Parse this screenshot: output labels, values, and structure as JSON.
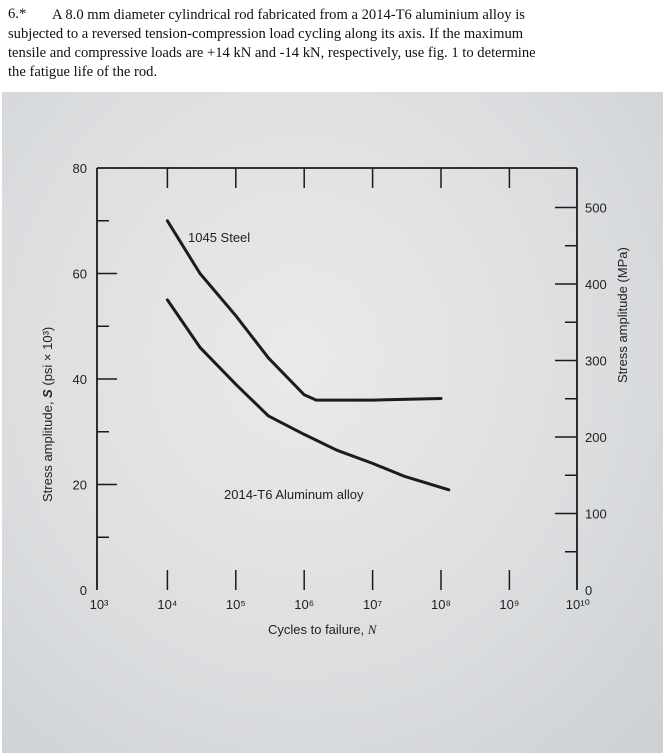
{
  "problem": {
    "number": "6.*",
    "lines": [
      "A 8.0 mm diameter cylindrical rod fabricated from a 2014-T6 aluminium alloy is",
      "subjected to a reversed tension-compression load cycling along its axis. If the maximum",
      "tensile and compressive loads are +14 kN and -14 kN, respectively, use fig. 1 to determine",
      "the fatigue life of the rod."
    ]
  },
  "chart_data": {
    "type": "line",
    "xscale": "log",
    "xlim_exponents": [
      3,
      10
    ],
    "x_ticks": [
      "10³",
      "10⁴",
      "10⁵",
      "10⁶",
      "10⁷",
      "10⁸",
      "10⁹",
      "10¹⁰"
    ],
    "xlabel_text": "Cycles to failure,",
    "xlabel_var": "N",
    "ylabel_left_text": "Stress amplitude,",
    "ylabel_left_var": "S",
    "ylabel_left_units": "(psi × 10³)",
    "ylim_left": [
      0,
      80
    ],
    "y_left_ticks": [
      "0",
      "20",
      "40",
      "60",
      "80"
    ],
    "ylabel_right": "Stress amplitude (MPa)",
    "y_right_ticks": [
      "0",
      "100",
      "200",
      "300",
      "400",
      "500"
    ],
    "series": [
      {
        "name": "1045 Steel",
        "points": [
          [
            10000.0,
            70
          ],
          [
            30000.0,
            60
          ],
          [
            100000.0,
            52
          ],
          [
            300000.0,
            44
          ],
          [
            1000000.0,
            37
          ],
          [
            1500000.0,
            36
          ],
          [
            10000000.0,
            36
          ],
          [
            100000000.0,
            36.3
          ]
        ]
      },
      {
        "name": "2014-T6 Aluminum alloy",
        "points": [
          [
            10000.0,
            55
          ],
          [
            30000.0,
            46
          ],
          [
            100000.0,
            39
          ],
          [
            300000.0,
            33
          ],
          [
            1000000.0,
            29.5
          ],
          [
            3000000.0,
            26.5
          ],
          [
            10000000.0,
            24
          ],
          [
            30000000.0,
            21.5
          ],
          [
            130000000.0,
            19
          ]
        ]
      }
    ],
    "grid": false
  }
}
